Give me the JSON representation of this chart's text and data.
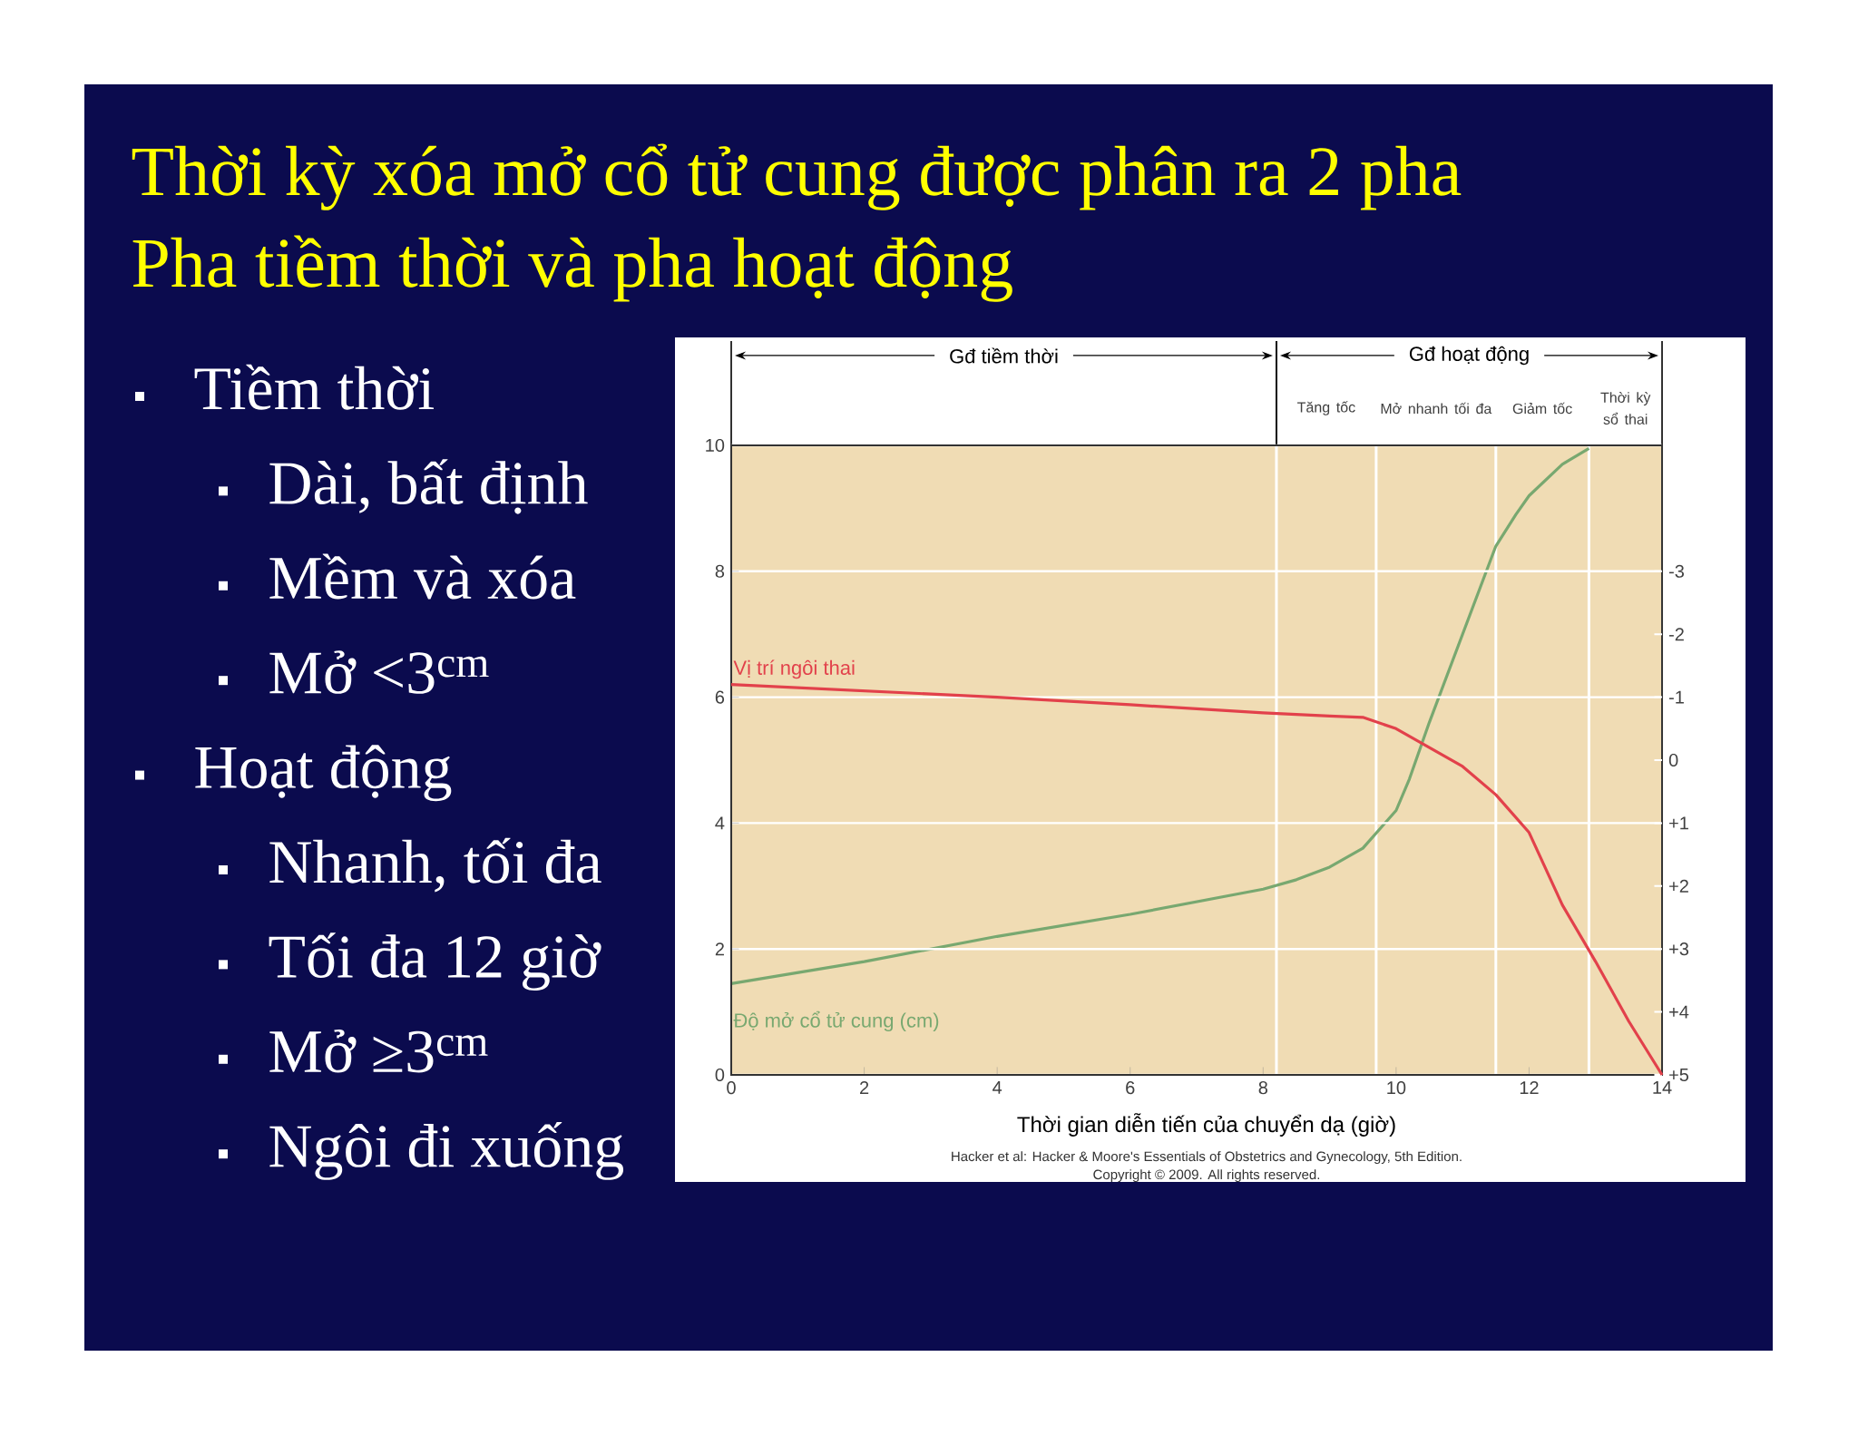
{
  "chart_data": {
    "type": "line",
    "title": "Thời kỳ xóa mở cổ tử cung được phân ra 2 pha",
    "subtitle": "Pha tiềm thời và pha hoạt động",
    "xlabel": "Thời gian diễn tiến của chuyển dạ (giờ)",
    "xlim": [
      0,
      14
    ],
    "xticks": [
      0,
      2,
      4,
      6,
      8,
      10,
      12,
      14
    ],
    "ylim": [
      0,
      10
    ],
    "yticks": [
      0,
      2,
      4,
      6,
      8,
      10
    ],
    "y2lim": [
      5,
      -5
    ],
    "y2ticks": [
      -3,
      -2,
      -1,
      0,
      {
        "value": 1,
        "label": "+1"
      },
      {
        "value": 2,
        "label": "+2"
      },
      {
        "value": 3,
        "label": "+3"
      },
      {
        "value": 4,
        "label": "+4"
      },
      {
        "value": 5,
        "label": "+5"
      }
    ],
    "grid": "y",
    "marker": "none",
    "line_style": "solid",
    "series": [
      {
        "name": "Vị trí ngôi thai",
        "color": "#e2414b",
        "axis": "y2",
        "x": [
          0,
          2,
          4,
          6,
          8,
          9,
          9.5,
          10,
          10.5,
          11,
          11.5,
          12,
          12.5,
          13,
          13.5,
          14
        ],
        "values": [
          -1.2,
          -1.1,
          -1.0,
          -0.88,
          -0.75,
          -0.7,
          -0.68,
          -0.5,
          -0.2,
          0.1,
          0.55,
          1.15,
          2.3,
          3.2,
          4.15,
          5
        ]
      },
      {
        "name": "Độ mở cổ tử cung (cm)",
        "color": "#78a870",
        "x": [
          0,
          2,
          4,
          6,
          8,
          8.5,
          9,
          9.5,
          10,
          10.2,
          10.5,
          11,
          11.5,
          11.8,
          12,
          12.5,
          12.9
        ],
        "values": [
          1.45,
          1.8,
          2.2,
          2.55,
          2.95,
          3.1,
          3.3,
          3.6,
          4.2,
          4.7,
          5.6,
          7.0,
          8.4,
          8.9,
          9.2,
          9.7,
          9.95
        ]
      }
    ],
    "ref_lines": [
      {
        "axis": "x",
        "value": 8.2,
        "color": "#ffffff"
      },
      {
        "axis": "x",
        "value": 9.7,
        "color": "#ffffff"
      },
      {
        "axis": "x",
        "value": 11.5,
        "color": "#ffffff"
      },
      {
        "axis": "x",
        "value": 12.9,
        "color": "#ffffff"
      }
    ],
    "annotations": [
      "Tiềm thời",
      "Dài, bất định",
      "Mềm và xóa",
      "Mở <3$^{cm}$",
      "Hoạt động",
      "Nhanh, tối đa",
      "Tối đa 12 giờ",
      "Mở ≥3$^{cm}$",
      "Ngôi đi xuống",
      "Gđ tiềm thời",
      "Gđ hoạt động",
      "Tăng tốc",
      "Mở nhanh tối đa",
      "Giảm tốc",
      "Thời kỳ sổ thai",
      "Hacker et al: Hacker & Moore's Essentials of Obstetrics and Gynecology, 5th Edition.",
      "Copyright © 2009. All rights reserved."
    ]
  }
}
